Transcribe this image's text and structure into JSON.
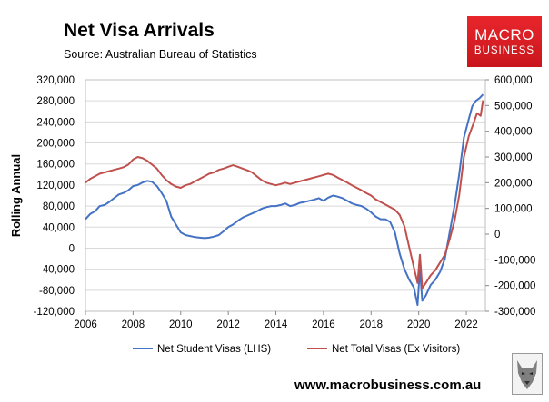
{
  "header": {
    "title": "Net Visa Arrivals",
    "subtitle": "Source: Australian Bureau of Statistics"
  },
  "logo": {
    "line1": "MACRO",
    "line2": "BUSINESS"
  },
  "footer": {
    "website": "www.macrobusiness.com.au"
  },
  "colors": {
    "student": "#4472c4",
    "total": "#c0504d",
    "grid": "#d9d9d9",
    "logo": "#d71920"
  },
  "chart_data": {
    "type": "line",
    "title": "Net Visa Arrivals",
    "ylabel": "Rolling Annual",
    "xlim": [
      2006,
      2022.8
    ],
    "xticks": [
      "2006",
      "2008",
      "2010",
      "2012",
      "2014",
      "2016",
      "2018",
      "2020",
      "2022"
    ],
    "ylim_left": [
      -120000,
      320000
    ],
    "ylim_right": [
      -300000,
      600000
    ],
    "yticks_left": [
      "320,000",
      "280,000",
      "240,000",
      "200,000",
      "160,000",
      "120,000",
      "80,000",
      "40,000",
      "0",
      "-40,000",
      "-80,000",
      "-120,000"
    ],
    "yticks_right": [
      "600,000",
      "500,000",
      "400,000",
      "300,000",
      "200,000",
      "100,000",
      "0",
      "-100,000",
      "-200,000",
      "-300,000"
    ],
    "grid": true,
    "legend": "bottom",
    "series": [
      {
        "name": "Net Student Visas (LHS)",
        "axis": "left",
        "points": [
          [
            2006.0,
            55000
          ],
          [
            2006.2,
            65000
          ],
          [
            2006.4,
            70000
          ],
          [
            2006.6,
            80000
          ],
          [
            2006.8,
            82000
          ],
          [
            2007.0,
            88000
          ],
          [
            2007.2,
            95000
          ],
          [
            2007.4,
            102000
          ],
          [
            2007.6,
            105000
          ],
          [
            2007.8,
            110000
          ],
          [
            2008.0,
            118000
          ],
          [
            2008.2,
            120000
          ],
          [
            2008.4,
            125000
          ],
          [
            2008.6,
            128000
          ],
          [
            2008.8,
            126000
          ],
          [
            2009.0,
            118000
          ],
          [
            2009.2,
            105000
          ],
          [
            2009.4,
            90000
          ],
          [
            2009.6,
            60000
          ],
          [
            2009.8,
            45000
          ],
          [
            2010.0,
            30000
          ],
          [
            2010.2,
            25000
          ],
          [
            2010.4,
            23000
          ],
          [
            2010.6,
            21000
          ],
          [
            2010.8,
            20000
          ],
          [
            2011.0,
            19000
          ],
          [
            2011.2,
            20000
          ],
          [
            2011.4,
            22000
          ],
          [
            2011.6,
            25000
          ],
          [
            2011.8,
            32000
          ],
          [
            2012.0,
            40000
          ],
          [
            2012.2,
            45000
          ],
          [
            2012.4,
            52000
          ],
          [
            2012.6,
            58000
          ],
          [
            2012.8,
            62000
          ],
          [
            2013.0,
            66000
          ],
          [
            2013.2,
            70000
          ],
          [
            2013.4,
            75000
          ],
          [
            2013.6,
            78000
          ],
          [
            2013.8,
            80000
          ],
          [
            2014.0,
            80000
          ],
          [
            2014.2,
            82000
          ],
          [
            2014.4,
            85000
          ],
          [
            2014.6,
            80000
          ],
          [
            2014.8,
            82000
          ],
          [
            2015.0,
            86000
          ],
          [
            2015.2,
            88000
          ],
          [
            2015.4,
            90000
          ],
          [
            2015.6,
            92000
          ],
          [
            2015.8,
            95000
          ],
          [
            2016.0,
            90000
          ],
          [
            2016.2,
            96000
          ],
          [
            2016.4,
            100000
          ],
          [
            2016.6,
            98000
          ],
          [
            2016.8,
            95000
          ],
          [
            2017.0,
            90000
          ],
          [
            2017.2,
            85000
          ],
          [
            2017.4,
            82000
          ],
          [
            2017.6,
            80000
          ],
          [
            2017.8,
            75000
          ],
          [
            2018.0,
            68000
          ],
          [
            2018.2,
            60000
          ],
          [
            2018.4,
            55000
          ],
          [
            2018.6,
            55000
          ],
          [
            2018.8,
            50000
          ],
          [
            2019.0,
            30000
          ],
          [
            2019.2,
            -10000
          ],
          [
            2019.4,
            -40000
          ],
          [
            2019.6,
            -60000
          ],
          [
            2019.8,
            -75000
          ],
          [
            2019.95,
            -108000
          ],
          [
            2020.05,
            -40000
          ],
          [
            2020.15,
            -100000
          ],
          [
            2020.3,
            -90000
          ],
          [
            2020.5,
            -70000
          ],
          [
            2020.7,
            -60000
          ],
          [
            2020.9,
            -45000
          ],
          [
            2021.1,
            -20000
          ],
          [
            2021.3,
            30000
          ],
          [
            2021.5,
            80000
          ],
          [
            2021.7,
            140000
          ],
          [
            2021.9,
            210000
          ],
          [
            2022.1,
            245000
          ],
          [
            2022.25,
            270000
          ],
          [
            2022.4,
            280000
          ],
          [
            2022.55,
            285000
          ],
          [
            2022.7,
            292000
          ]
        ]
      },
      {
        "name": "Net Total Visas (Ex Visitors)",
        "axis": "right",
        "points": [
          [
            2006.0,
            200000
          ],
          [
            2006.2,
            215000
          ],
          [
            2006.4,
            225000
          ],
          [
            2006.6,
            235000
          ],
          [
            2006.8,
            240000
          ],
          [
            2007.0,
            245000
          ],
          [
            2007.2,
            250000
          ],
          [
            2007.4,
            255000
          ],
          [
            2007.6,
            260000
          ],
          [
            2007.8,
            270000
          ],
          [
            2008.0,
            290000
          ],
          [
            2008.2,
            300000
          ],
          [
            2008.4,
            295000
          ],
          [
            2008.6,
            285000
          ],
          [
            2008.8,
            270000
          ],
          [
            2009.0,
            255000
          ],
          [
            2009.2,
            230000
          ],
          [
            2009.4,
            210000
          ],
          [
            2009.6,
            195000
          ],
          [
            2009.8,
            185000
          ],
          [
            2010.0,
            180000
          ],
          [
            2010.2,
            190000
          ],
          [
            2010.4,
            195000
          ],
          [
            2010.6,
            205000
          ],
          [
            2010.8,
            215000
          ],
          [
            2011.0,
            225000
          ],
          [
            2011.2,
            235000
          ],
          [
            2011.4,
            240000
          ],
          [
            2011.6,
            250000
          ],
          [
            2011.8,
            255000
          ],
          [
            2012.0,
            262000
          ],
          [
            2012.2,
            268000
          ],
          [
            2012.4,
            262000
          ],
          [
            2012.6,
            255000
          ],
          [
            2012.8,
            248000
          ],
          [
            2013.0,
            240000
          ],
          [
            2013.2,
            225000
          ],
          [
            2013.4,
            210000
          ],
          [
            2013.6,
            200000
          ],
          [
            2013.8,
            195000
          ],
          [
            2014.0,
            190000
          ],
          [
            2014.2,
            195000
          ],
          [
            2014.4,
            200000
          ],
          [
            2014.6,
            195000
          ],
          [
            2014.8,
            200000
          ],
          [
            2015.0,
            205000
          ],
          [
            2015.2,
            210000
          ],
          [
            2015.4,
            215000
          ],
          [
            2015.6,
            220000
          ],
          [
            2015.8,
            225000
          ],
          [
            2016.0,
            230000
          ],
          [
            2016.2,
            235000
          ],
          [
            2016.4,
            230000
          ],
          [
            2016.6,
            220000
          ],
          [
            2016.8,
            210000
          ],
          [
            2017.0,
            200000
          ],
          [
            2017.2,
            190000
          ],
          [
            2017.4,
            180000
          ],
          [
            2017.6,
            170000
          ],
          [
            2017.8,
            160000
          ],
          [
            2018.0,
            150000
          ],
          [
            2018.2,
            135000
          ],
          [
            2018.4,
            125000
          ],
          [
            2018.6,
            115000
          ],
          [
            2018.8,
            105000
          ],
          [
            2019.0,
            95000
          ],
          [
            2019.2,
            75000
          ],
          [
            2019.4,
            30000
          ],
          [
            2019.6,
            -50000
          ],
          [
            2019.8,
            -130000
          ],
          [
            2019.95,
            -190000
          ],
          [
            2020.05,
            -80000
          ],
          [
            2020.15,
            -210000
          ],
          [
            2020.3,
            -190000
          ],
          [
            2020.5,
            -160000
          ],
          [
            2020.7,
            -140000
          ],
          [
            2020.9,
            -110000
          ],
          [
            2021.1,
            -80000
          ],
          [
            2021.3,
            -20000
          ],
          [
            2021.5,
            50000
          ],
          [
            2021.7,
            150000
          ],
          [
            2021.9,
            300000
          ],
          [
            2022.1,
            380000
          ],
          [
            2022.3,
            430000
          ],
          [
            2022.45,
            470000
          ],
          [
            2022.6,
            460000
          ],
          [
            2022.7,
            520000
          ]
        ]
      }
    ]
  }
}
